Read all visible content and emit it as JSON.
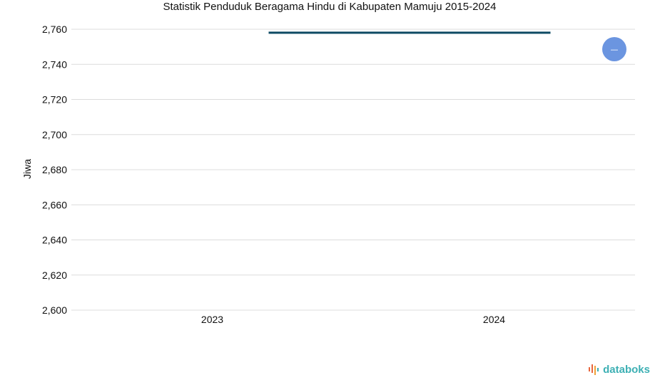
{
  "colors": {
    "line": "#0d4a63",
    "grid": "#dcdcdc",
    "text": "#111111",
    "button": "#6b95e0",
    "brand": "#3db0b4",
    "brand_mark": "#e8663d"
  },
  "chart_data": {
    "type": "line",
    "title": "Statistik Penduduk Beragama Hindu di Kabupaten Mamuju 2015-2024",
    "xlabel": "",
    "ylabel": "Jiwa",
    "categories": [
      "2023",
      "2024"
    ],
    "series": [
      {
        "values": [
          2758,
          2758
        ]
      }
    ],
    "ylim": [
      2600,
      2760
    ],
    "yticks": [
      2600,
      2620,
      2640,
      2660,
      2680,
      2700,
      2720,
      2740,
      2760
    ],
    "ytick_labels": [
      "2,600",
      "2,620",
      "2,640",
      "2,660",
      "2,680",
      "2,700",
      "2,720",
      "2,740",
      "2,760"
    ],
    "grid": true,
    "legend": "none"
  },
  "controls": {
    "toggle_icon": "minus-icon",
    "toggle_glyph": "—"
  },
  "brand": {
    "icon": "databoks-logo-icon",
    "text": "databoks"
  }
}
